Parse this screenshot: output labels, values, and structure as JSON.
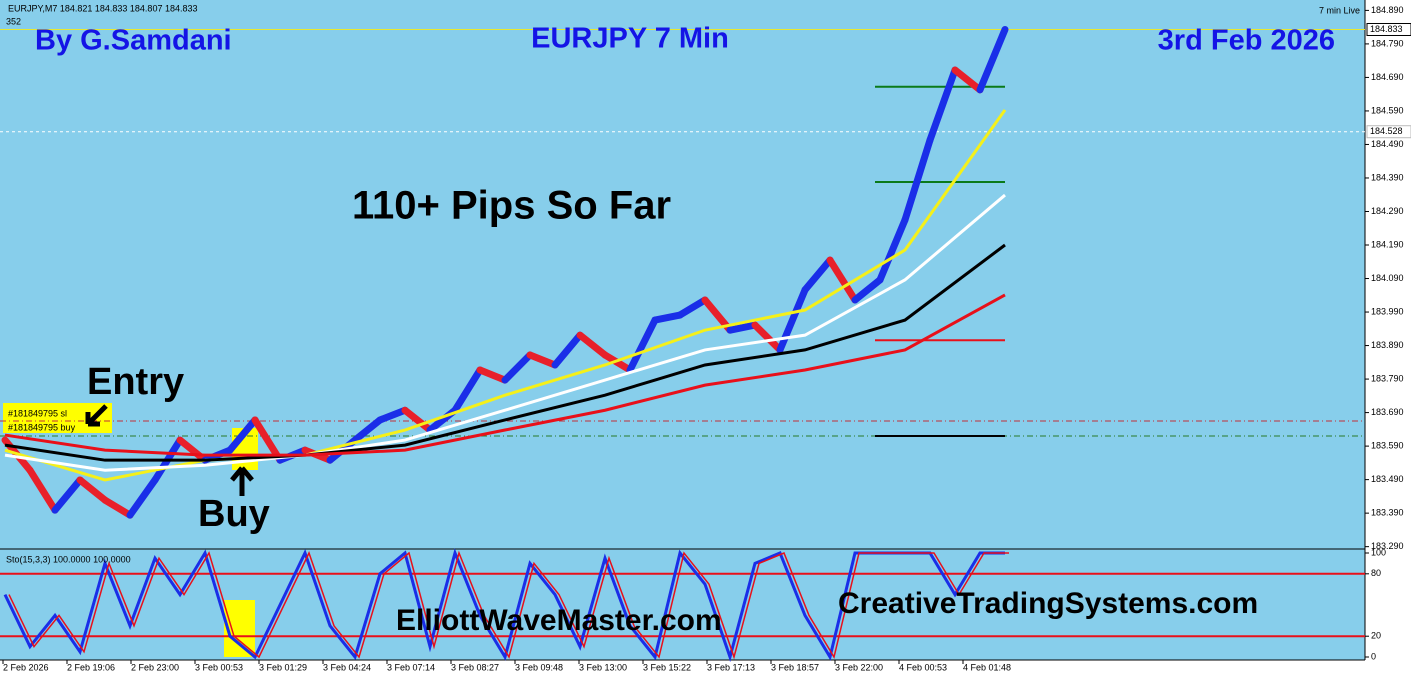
{
  "chart_data": {
    "type": "line",
    "header": "EURJPY,M7  184.821 184.833 184.807 184.833",
    "subheader": "352",
    "live_label": "7 min Live",
    "author": "By G.Samdani",
    "title": "EURJPY 7 Min",
    "date": "3rd Feb 2026",
    "headline": "110+ Pips So Far",
    "entry_label": "Entry",
    "buy_label": "Buy",
    "order_labels": [
      "#181849795 sl",
      "#181849795 buy"
    ],
    "site_left": "ElliottWaveMaster.com",
    "site_right": "CreativeTradingSystems.com",
    "ylim": [
      183.286,
      184.921
    ],
    "yticks": [
      {
        "value": 184.89,
        "label": "184.890"
      },
      {
        "value": 184.79,
        "label": "184.790"
      },
      {
        "value": 184.69,
        "label": "184.690"
      },
      {
        "value": 184.59,
        "label": "184.590"
      },
      {
        "value": 184.49,
        "label": "184.490"
      },
      {
        "value": 184.39,
        "label": "184.390"
      },
      {
        "value": 184.29,
        "label": "184.290"
      },
      {
        "value": 184.19,
        "label": "184.190"
      },
      {
        "value": 184.09,
        "label": "184.090"
      },
      {
        "value": 183.99,
        "label": "183.990"
      },
      {
        "value": 183.89,
        "label": "183.890"
      },
      {
        "value": 183.79,
        "label": "183.790"
      },
      {
        "value": 183.69,
        "label": "183.690"
      },
      {
        "value": 183.59,
        "label": "183.590"
      },
      {
        "value": 183.49,
        "label": "183.490"
      },
      {
        "value": 183.39,
        "label": "183.390"
      },
      {
        "value": 183.29,
        "label": "183.290"
      }
    ],
    "current_price": 184.833,
    "marker_price": 184.528,
    "xtick_labels": [
      "2 Feb 2026",
      "2 Feb 19:06",
      "2 Feb 23:00",
      "3 Feb 00:53",
      "3 Feb 01:29",
      "3 Feb 04:24",
      "3 Feb 07:14",
      "3 Feb 08:27",
      "3 Feb 09:48",
      "3 Feb 13:00",
      "3 Feb 15:22",
      "3 Feb 17:13",
      "3 Feb 18:57",
      "3 Feb 22:00",
      "4 Feb 00:53",
      "4 Feb 01:48"
    ],
    "price": {
      "up_color": "#1a2ee8",
      "down_color": "#e8202a",
      "values": [
        183.608,
        183.518,
        183.399,
        183.489,
        183.429,
        183.384,
        183.489,
        183.608,
        183.548,
        183.578,
        183.668,
        183.548,
        183.578,
        183.548,
        183.608,
        183.668,
        183.697,
        183.638,
        183.697,
        183.817,
        183.787,
        183.862,
        183.832,
        183.921,
        183.862,
        183.817,
        183.966,
        183.981,
        184.026,
        183.936,
        183.951,
        183.877,
        184.056,
        184.145,
        184.026,
        184.086,
        184.265,
        184.503,
        184.712,
        184.653,
        184.833
      ]
    },
    "series": [
      {
        "color": "#f5f019",
        "values": [
          183.578,
          183.489,
          183.548,
          183.563,
          183.638,
          183.742,
          183.832,
          183.936,
          183.996,
          184.175,
          184.593
        ]
      },
      {
        "color": "#ffffff",
        "values": [
          183.563,
          183.518,
          183.533,
          183.563,
          183.608,
          183.697,
          183.787,
          183.877,
          183.921,
          184.086,
          184.339
        ]
      },
      {
        "color": "#000000",
        "values": [
          183.593,
          183.548,
          183.548,
          183.563,
          183.593,
          183.668,
          183.742,
          183.832,
          183.877,
          183.966,
          184.19
        ]
      },
      {
        "color": "#e8101a",
        "values": [
          183.623,
          183.578,
          183.563,
          183.563,
          183.578,
          183.638,
          183.697,
          183.772,
          183.817,
          183.877,
          184.041
        ]
      }
    ],
    "levels": [
      {
        "value": 184.662,
        "color": "#0a7a1a"
      },
      {
        "value": 184.378,
        "color": "#0a7a1a"
      },
      {
        "value": 183.906,
        "color": "#e8101a"
      },
      {
        "value": 183.62,
        "color": "#000000"
      }
    ],
    "order_lines": [
      {
        "value": 183.665,
        "color": "#c0303a"
      },
      {
        "value": 183.62,
        "color": "#2a7a2a"
      }
    ],
    "stoch": {
      "label": "Sto(15,3,3) 100.0000 100.0000",
      "color": "#1a2ee8",
      "ylim": [
        0,
        100
      ],
      "yticks": [
        100,
        80,
        20,
        0
      ],
      "levels": [
        80,
        20
      ],
      "values": [
        60,
        10,
        40,
        5,
        90,
        30,
        95,
        60,
        100,
        20,
        0,
        50,
        100,
        30,
        0,
        80,
        100,
        10,
        100,
        40,
        0,
        90,
        60,
        10,
        95,
        30,
        0,
        100,
        70,
        0,
        90,
        100,
        40,
        0,
        100,
        100,
        100,
        100,
        60,
        100,
        100
      ]
    }
  }
}
